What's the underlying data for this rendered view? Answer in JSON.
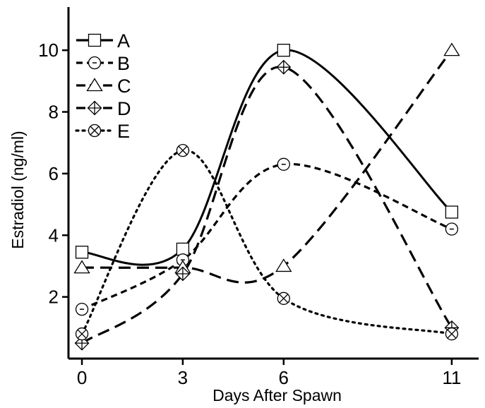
{
  "chart_data": {
    "type": "line",
    "title": "",
    "xlabel": "Days After Spawn",
    "ylabel": "Estradiol (ng/ml)",
    "x": [
      0,
      3,
      6,
      11
    ],
    "x_ticks": [
      "0",
      "3",
      "6",
      "11"
    ],
    "y_ticks": [
      "2",
      "4",
      "6",
      "8",
      "10"
    ],
    "xlim": [
      -0.4,
      11.8
    ],
    "ylim": [
      0,
      11.4
    ],
    "grid": false,
    "legend_position": "top-left",
    "series": [
      {
        "name": "A",
        "values": [
          3.45,
          3.55,
          10.0,
          4.75
        ],
        "line_style": "solid",
        "marker": "square"
      },
      {
        "name": "B",
        "values": [
          1.6,
          3.2,
          6.3,
          4.2
        ],
        "line_style": "short-dash",
        "marker": "circle-dot"
      },
      {
        "name": "C",
        "values": [
          2.95,
          2.95,
          3.0,
          10.0
        ],
        "line_style": "long-dash",
        "marker": "triangle"
      },
      {
        "name": "D",
        "values": [
          0.5,
          2.75,
          9.45,
          1.0
        ],
        "line_style": "long-dash",
        "marker": "diamond-cross"
      },
      {
        "name": "E",
        "values": [
          0.8,
          6.75,
          1.95,
          0.8
        ],
        "line_style": "dotted",
        "marker": "circle-x"
      }
    ]
  }
}
